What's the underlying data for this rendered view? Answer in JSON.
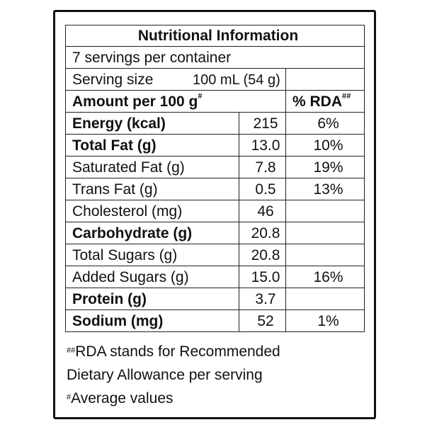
{
  "label": {
    "title": "Nutritional Information",
    "servings_per_container": "7 servings per container",
    "serving_size_label": "Serving size",
    "serving_size_value": "100 mL (54 g)",
    "amount_header": "Amount per 100 g",
    "amount_header_mark": "#",
    "rda_header": "% RDA",
    "rda_header_mark": "##",
    "rows": [
      {
        "name": "Energy (kcal)",
        "value": "215",
        "rda": "6%",
        "bold": true
      },
      {
        "name": "Total Fat (g)",
        "value": "13.0",
        "rda": "10%",
        "bold": true
      },
      {
        "name": "Saturated Fat (g)",
        "value": "7.8",
        "rda": "19%",
        "bold": false
      },
      {
        "name": "Trans Fat (g)",
        "value": "0.5",
        "rda": "13%",
        "bold": false
      },
      {
        "name": "Cholesterol (mg)",
        "value": "46",
        "rda": "",
        "bold": false
      },
      {
        "name": "Carbohydrate (g)",
        "value": "20.8",
        "rda": "",
        "bold": true
      },
      {
        "name": "Total Sugars (g)",
        "value": "20.8",
        "rda": "",
        "bold": false
      },
      {
        "name": "Added Sugars (g)",
        "value": "15.0",
        "rda": "16%",
        "bold": false
      },
      {
        "name": "Protein (g)",
        "value": "3.7",
        "rda": "",
        "bold": true
      },
      {
        "name": "Sodium (mg)",
        "value": "52",
        "rda": "1%",
        "bold": true
      }
    ]
  },
  "footnotes": {
    "rda_mark": "##",
    "rda_line1": "RDA stands for Recommended",
    "rda_line2": "Dietary Allowance per serving",
    "avg_mark": "#",
    "avg_text": "Average values"
  }
}
